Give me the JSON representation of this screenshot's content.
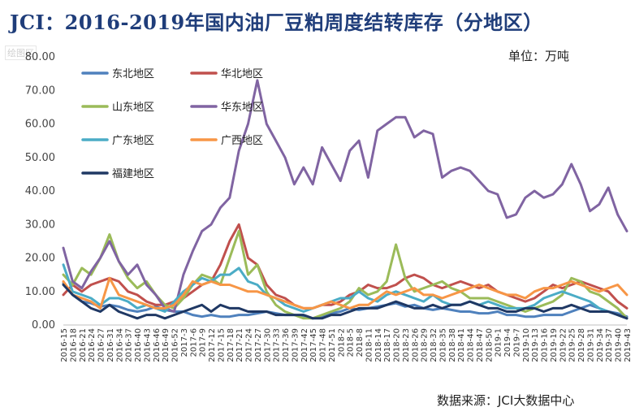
{
  "title": "JCI：2016-2019年国内油厂豆粕周度结转库存（分地区）",
  "unit_label": "单位：万吨",
  "source_label": "数据来源：JCI大数据中心",
  "watermark_label": "绘图区",
  "chart_data": {
    "type": "line",
    "title": "JCI：2016-2019年国内油厂豆粕周度结转库存（分地区）",
    "ylabel": "万吨",
    "ylim": [
      0,
      80
    ],
    "ytick_labels": [
      "0.00",
      "10.00",
      "20.00",
      "30.00",
      "40.00",
      "50.00",
      "60.00",
      "70.00",
      "80.00"
    ],
    "x_labels": [
      "2016-15",
      "2016-18",
      "2016-21",
      "2016-24",
      "2016-27",
      "2016-31",
      "2016-34",
      "2016-37",
      "2016-40",
      "2016-43",
      "2016-46",
      "2016-49",
      "2016-52",
      "2017-3",
      "2017-6",
      "2017-9",
      "2017-12",
      "2017-15",
      "2017-18",
      "2017-21",
      "2017-24",
      "2017-27",
      "2017-30",
      "2017-33",
      "2017-36",
      "2017-39",
      "2017-42",
      "2017-45",
      "2017-48",
      "2017-51",
      "2018-2",
      "2018-5",
      "2018-8",
      "2018-11",
      "2018-14",
      "2018-17",
      "2018-20",
      "2018-23",
      "2018-26",
      "2018-29",
      "2018-32",
      "2018-35",
      "2018-38",
      "2018-41",
      "2018-44",
      "2018-47",
      "2018-50",
      "2019-1",
      "2019-4",
      "2019-7",
      "2019-10",
      "2019-13",
      "2019-16",
      "2019-19",
      "2019-22",
      "2019-25",
      "2019-28",
      "2019-31",
      "2019-34",
      "2019-37",
      "2019-40",
      "2019-43"
    ],
    "series": [
      {
        "name": "东北地区",
        "color": "#4f81bd",
        "values": [
          12.5,
          9,
          7,
          6.5,
          5.5,
          6,
          5.5,
          4.5,
          4,
          4.5,
          5.5,
          4.5,
          4,
          4,
          3,
          2.5,
          3,
          2.5,
          2.5,
          3,
          3,
          3.5,
          4,
          3.5,
          3,
          3,
          2.5,
          2,
          2.5,
          3.5,
          4,
          5,
          4.5,
          5,
          5.5,
          6,
          6.5,
          5.5,
          6,
          5,
          4.5,
          5,
          4.5,
          4,
          4,
          3.5,
          3.5,
          4,
          3,
          3,
          2.5,
          2.5,
          3,
          3,
          3,
          4,
          5,
          6,
          5,
          4,
          3.5,
          2.5
        ]
      },
      {
        "name": "华北地区",
        "color": "#c0504d",
        "values": [
          9,
          12,
          10,
          12,
          13,
          14,
          13,
          10,
          9,
          7,
          6,
          6,
          7,
          8,
          10,
          12,
          13,
          18,
          25,
          30,
          20,
          18,
          12,
          9,
          8,
          6,
          5,
          5,
          6,
          6,
          7,
          9,
          10,
          12,
          11,
          11,
          12,
          14,
          15,
          14,
          12,
          11,
          12,
          13,
          12,
          11,
          12,
          10,
          9,
          8,
          7,
          8,
          10,
          12,
          11,
          12,
          13,
          12,
          11,
          10,
          7,
          5
        ]
      },
      {
        "name": "山东地区",
        "color": "#9bbb59",
        "values": [
          15,
          12,
          17,
          15,
          20,
          27,
          19,
          14,
          11,
          13,
          9,
          6,
          5,
          8,
          12,
          15,
          14,
          12,
          20,
          28,
          15,
          18,
          10,
          6,
          4,
          3,
          2,
          2,
          3,
          4,
          5,
          7,
          11,
          9,
          10,
          13,
          24,
          14,
          10,
          11,
          12,
          13,
          11,
          10,
          8,
          8,
          8,
          7,
          6,
          5,
          4,
          5,
          6,
          7,
          9,
          14,
          13,
          10,
          9,
          7,
          5,
          2
        ]
      },
      {
        "name": "华东地区",
        "color": "#8064a2",
        "values": [
          23,
          13,
          11,
          16,
          20,
          25,
          19,
          15,
          18,
          12,
          9,
          5,
          4,
          15,
          22,
          28,
          30,
          35,
          38,
          52,
          60,
          73,
          60,
          55,
          50,
          42,
          47,
          42,
          53,
          48,
          43,
          52,
          55,
          44,
          58,
          60,
          62,
          62,
          56,
          58,
          57,
          44,
          46,
          47,
          46,
          43,
          40,
          39,
          32,
          33,
          38,
          40,
          38,
          39,
          42,
          48,
          42,
          34,
          36,
          41,
          33,
          28
        ]
      },
      {
        "name": "广东地区",
        "color": "#4bacc6",
        "values": [
          18,
          10,
          9,
          8,
          6,
          8,
          8,
          7,
          5,
          6,
          5,
          4,
          7,
          10,
          12,
          14,
          13,
          15,
          15,
          17,
          13,
          12,
          9,
          8,
          6,
          5,
          4,
          5,
          6,
          7,
          8,
          8,
          10,
          8,
          7,
          9,
          10,
          9,
          8,
          7,
          9,
          7,
          6,
          6,
          7,
          6,
          7,
          6,
          5,
          5,
          5,
          6,
          8,
          9,
          10,
          9,
          8,
          7,
          5,
          4,
          3,
          2
        ]
      },
      {
        "name": "广西地区",
        "color": "#f79646",
        "values": [
          13,
          9,
          8,
          7,
          5,
          14,
          9,
          8,
          7,
          6,
          5,
          5,
          6,
          9,
          13,
          12,
          13,
          12,
          12,
          11,
          10,
          10,
          9,
          8,
          7,
          6,
          5,
          5,
          6,
          7,
          6,
          5,
          6,
          6,
          8,
          10,
          9,
          10,
          11,
          9,
          9,
          8,
          9,
          10,
          11,
          12,
          11,
          10,
          9,
          9,
          8,
          10,
          11,
          11,
          12,
          13,
          12,
          11,
          10,
          11,
          12,
          9
        ]
      },
      {
        "name": "福建地区",
        "color": "#1f3864",
        "values": [
          12,
          9,
          7,
          5,
          4,
          6,
          4,
          3,
          2,
          3,
          3,
          2,
          3,
          4,
          5,
          6,
          4,
          6,
          5,
          5,
          4,
          4,
          4,
          3,
          3,
          3,
          3,
          2,
          2,
          3,
          3,
          4,
          5,
          5,
          5,
          6,
          7,
          6,
          5,
          5,
          6,
          5,
          6,
          6,
          7,
          6,
          5,
          5,
          4,
          4,
          5,
          5,
          4,
          5,
          5,
          6,
          5,
          4,
          4,
          4,
          3,
          2
        ]
      }
    ]
  }
}
